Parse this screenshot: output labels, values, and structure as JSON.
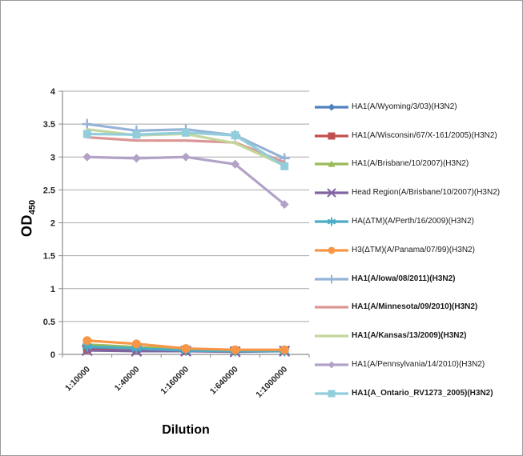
{
  "figure": {
    "background": "#ffffff",
    "border_color": "#999999"
  },
  "chart_data": {
    "type": "line",
    "title": "",
    "xlabel": "Dilution",
    "ylabel_main": "OD",
    "ylabel_sub": "450",
    "categories": [
      "1:10000",
      "1:40000",
      "1:160000",
      "1:640000",
      "1:1000000"
    ],
    "ylim": [
      0,
      4
    ],
    "ytick_labels": [
      "0",
      "0.5",
      "1",
      "1.5",
      "2",
      "2.5",
      "3",
      "3.5",
      "4"
    ],
    "grid": true,
    "legend_position": "right",
    "series": [
      {
        "name": "HA1(A/Wyoming/3/03)(H3N2)",
        "color": "#4F81BD",
        "marker": "diamond",
        "bold": false,
        "values": [
          0.1,
          0.08,
          0.06,
          0.05,
          0.05
        ]
      },
      {
        "name": "HA1(A/Wisconsin/67/X-161/2005)(H3N2)",
        "color": "#C0504D",
        "marker": "square",
        "bold": false,
        "values": [
          0.07,
          0.06,
          0.05,
          0.05,
          0.06
        ]
      },
      {
        "name": "HA1(A/Brisbane/10/2007)(H3N2)",
        "color": "#9BBB59",
        "marker": "triangle",
        "bold": false,
        "values": [
          0.15,
          0.11,
          0.08,
          0.06,
          0.06
        ]
      },
      {
        "name": "Head Region(A/Brisbane/10/2007)(H3N2)",
        "color": "#8064A2",
        "marker": "x",
        "bold": false,
        "values": [
          0.06,
          0.05,
          0.05,
          0.04,
          0.05
        ]
      },
      {
        "name": "HA(ΔTM)(A/Perth/16/2009)(H3N2)",
        "color": "#4BACC6",
        "marker": "star",
        "bold": false,
        "values": [
          0.12,
          0.09,
          0.06,
          0.05,
          0.05
        ]
      },
      {
        "name": "H3(ΔTM)(A/Panama/07/99)(H3N2)",
        "color": "#F79646",
        "marker": "circle",
        "bold": false,
        "values": [
          0.21,
          0.16,
          0.09,
          0.07,
          0.07
        ]
      },
      {
        "name": "HA1(A/Iowa/08/2011)(H3N2)",
        "color": "#95B3D7",
        "marker": "plus",
        "bold": true,
        "values": [
          3.5,
          3.4,
          3.42,
          3.33,
          2.98
        ]
      },
      {
        "name": "HA1(A/Minnesota/09/2010)(H3N2)",
        "color": "#D99694",
        "marker": "none",
        "bold": true,
        "values": [
          3.3,
          3.25,
          3.25,
          3.22,
          2.92
        ]
      },
      {
        "name": "HA1(A/Kansas/13/2009)(H3N2)",
        "color": "#C3D69B",
        "marker": "none",
        "bold": true,
        "values": [
          3.42,
          3.33,
          3.35,
          3.21,
          2.87
        ]
      },
      {
        "name": "HA1(A/Pennsylvania/14/2010)(H3N2)",
        "color": "#B3A2C7",
        "marker": "diamond",
        "bold": false,
        "values": [
          3.0,
          2.98,
          3.0,
          2.89,
          2.28
        ]
      },
      {
        "name": "HA1(A_Ontario_RV1273_2005)(H3N2)",
        "color": "#92CDDC",
        "marker": "square",
        "bold": true,
        "values": [
          3.35,
          3.34,
          3.37,
          3.33,
          2.86
        ]
      }
    ]
  }
}
